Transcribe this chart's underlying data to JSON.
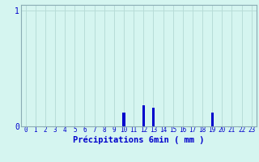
{
  "hours": [
    0,
    1,
    2,
    3,
    4,
    5,
    6,
    7,
    8,
    9,
    10,
    11,
    12,
    13,
    14,
    15,
    16,
    17,
    18,
    19,
    20,
    21,
    22,
    23
  ],
  "values": [
    0,
    0,
    0,
    0,
    0,
    0,
    0,
    0,
    0,
    0,
    0.12,
    0,
    0.18,
    0.16,
    0,
    0,
    0,
    0,
    0,
    0.12,
    0,
    0,
    0,
    0
  ],
  "bar_color": "#0000cc",
  "background_color": "#d5f5f0",
  "grid_color": "#b8ddd8",
  "axis_color": "#8aacb4",
  "text_color": "#0000cc",
  "xlabel": "Précipitations 6min ( mm )",
  "xlabel_fontsize": 7.5,
  "tick_fontsize": 5.5,
  "ylim": [
    0,
    1.05
  ],
  "xlim": [
    -0.5,
    23.5
  ],
  "bar_width": 0.25
}
